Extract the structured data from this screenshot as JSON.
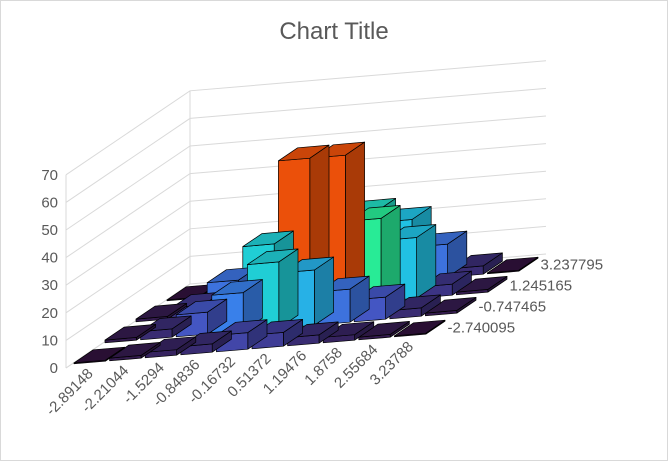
{
  "chart_data": {
    "type": "bar3d",
    "title": "Chart Title",
    "xlabel": "",
    "ylabel": "",
    "zlim": [
      0,
      70
    ],
    "z_ticks": [
      "0",
      "10",
      "20",
      "30",
      "40",
      "50",
      "60",
      "70"
    ],
    "x_categories": [
      "-2.89148",
      "-2.21044",
      "-1.5294",
      "-0.84836",
      "-0.16732",
      "0.51372",
      "1.19476",
      "1.8758",
      "2.55684",
      "3.23788"
    ],
    "y_categories": [
      "-2.740095",
      "-0.747465",
      "1.245165",
      "3.237795"
    ],
    "grid": true,
    "values": [
      [
        0,
        1,
        2,
        3,
        6,
        5,
        3,
        2,
        1,
        0
      ],
      [
        1,
        3,
        8,
        14,
        24,
        20,
        12,
        8,
        3,
        1
      ],
      [
        1,
        4,
        12,
        24,
        54,
        54,
        30,
        22,
        4,
        1
      ],
      [
        0,
        2,
        5,
        8,
        27,
        26,
        22,
        12,
        3,
        0
      ]
    ]
  }
}
